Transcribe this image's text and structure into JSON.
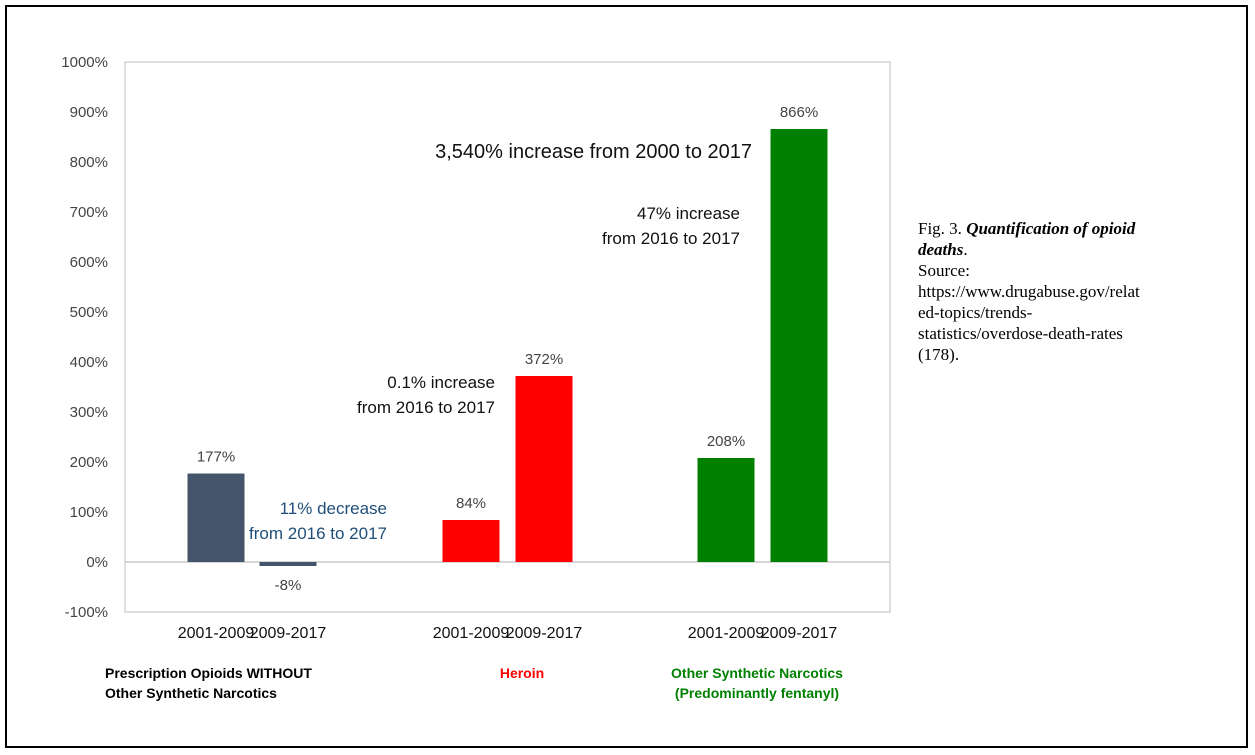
{
  "colors": {
    "prescription": "#44546a",
    "heroin": "#ff0000",
    "synthetic": "#008000",
    "annotation_dark": "#111111",
    "annotation_blue": "#1f4e79"
  },
  "chart_data": {
    "type": "bar",
    "title": "",
    "xlabel": "",
    "ylabel": "",
    "ylim": [
      -100,
      1000
    ],
    "yticks": [
      -100,
      0,
      100,
      200,
      300,
      400,
      500,
      600,
      700,
      800,
      900,
      1000
    ],
    "ytick_labels": [
      "-100%",
      "0%",
      "100%",
      "200%",
      "300%",
      "400%",
      "500%",
      "600%",
      "700%",
      "800%",
      "900%",
      "1000%"
    ],
    "grid": false,
    "groups": [
      {
        "name_lines": [
          "Prescription Opioids WITHOUT",
          "Other Synthetic Narcotics"
        ],
        "color_key": "prescription",
        "bars": [
          {
            "category": "2001-2009",
            "value": 177,
            "label": "177%"
          },
          {
            "category": "2009-2017",
            "value": -8,
            "label": "-8%"
          }
        ],
        "annotation_lines": [
          "11% decrease",
          "from 2016 to 2017"
        ]
      },
      {
        "name_lines": [
          "Heroin"
        ],
        "color_key": "heroin",
        "bars": [
          {
            "category": "2001-2009",
            "value": 84,
            "label": "84%"
          },
          {
            "category": "2009-2017",
            "value": 372,
            "label": "372%"
          }
        ],
        "annotation_lines": [
          "0.1% increase",
          "from 2016 to 2017"
        ]
      },
      {
        "name_lines": [
          "Other Synthetic Narcotics",
          "(Predominantly fentanyl)"
        ],
        "color_key": "synthetic",
        "bars": [
          {
            "category": "2001-2009",
            "value": 208,
            "label": "208%"
          },
          {
            "category": "2009-2017",
            "value": 866,
            "label": "866%"
          }
        ],
        "annotation_lines": [
          "47% increase",
          "from 2016 to 2017"
        ]
      }
    ],
    "top_annotation": "3,540% increase from 2000 to 2017"
  },
  "caption": {
    "fig_label": "Fig. 3.",
    "fig_title": "Quantification of opioid deaths",
    "fig_title_end": ".",
    "source_prefix": "Source:",
    "source_url": "https://www.drugabuse.gov/related-topics/trends-statistics/overdose-death-rates",
    "source_ref": "(178)."
  }
}
